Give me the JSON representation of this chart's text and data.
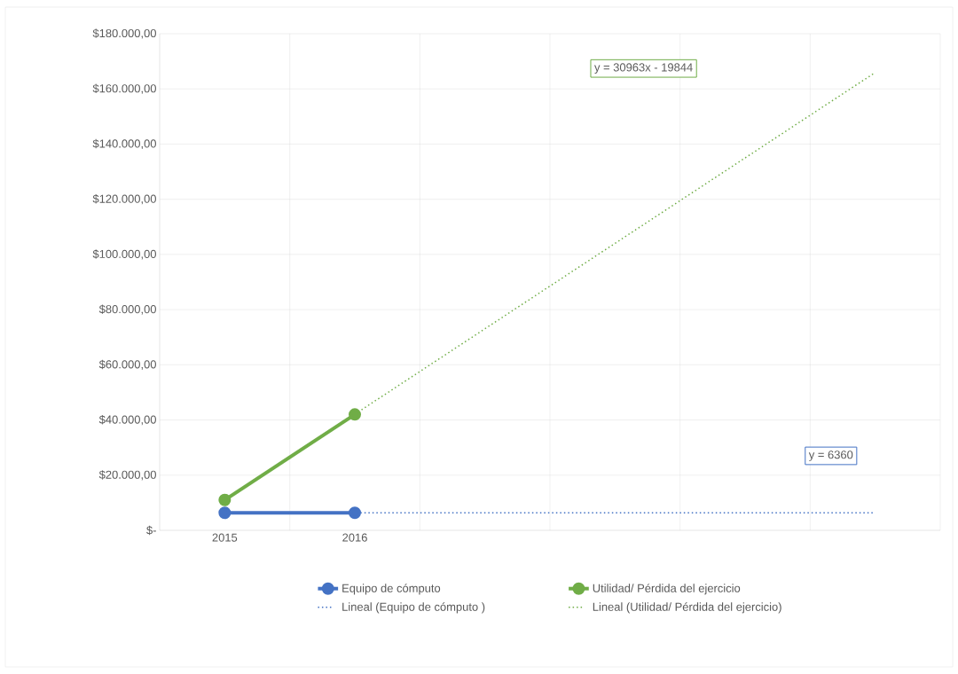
{
  "chart_data": {
    "type": "line",
    "categories": [
      "2015",
      "2016",
      null,
      null,
      null,
      null
    ],
    "series": [
      {
        "name": "Equipo de cómputo",
        "color": "#4472c4",
        "values": [
          6360,
          6360,
          null,
          null,
          null,
          null
        ],
        "line_style": "solid"
      },
      {
        "name": "Utilidad/ Pérdida del ejercicio",
        "color": "#70ad47",
        "values": [
          11000,
          42000,
          null,
          null,
          null,
          null
        ],
        "line_style": "solid"
      },
      {
        "name": "Lineal (Equipo de cómputo )",
        "color": "#4472c4",
        "values": [
          6360,
          6360,
          6360,
          6360,
          6360,
          6360
        ],
        "marker": "none",
        "line_style": "dotted"
      },
      {
        "name": "Lineal (Utilidad/ Pérdida del ejercicio)",
        "color": "#70ad47",
        "values": [
          11119,
          42082,
          73045,
          104008,
          134971,
          165934
        ],
        "marker": "none",
        "line_style": "dotted"
      }
    ],
    "ylim": [
      0,
      180000
    ],
    "yticks": [
      {
        "value": 0,
        "label": "$-"
      },
      {
        "value": 20000,
        "label": "$20.000,00"
      },
      {
        "value": 40000,
        "label": "$40.000,00"
      },
      {
        "value": 60000,
        "label": "$60.000,00"
      },
      {
        "value": 80000,
        "label": "$80.000,00"
      },
      {
        "value": 100000,
        "label": "$100.000,00"
      },
      {
        "value": 120000,
        "label": "$120.000,00"
      },
      {
        "value": 140000,
        "label": "$140.000,00"
      },
      {
        "value": 160000,
        "label": "$160.000,00"
      },
      {
        "value": 180000,
        "label": "$180.000,00"
      }
    ],
    "annotations": [
      "y = 30963x - 19844",
      "y = 6360"
    ],
    "grid": true,
    "legend": "bottom",
    "marker": "circle"
  }
}
